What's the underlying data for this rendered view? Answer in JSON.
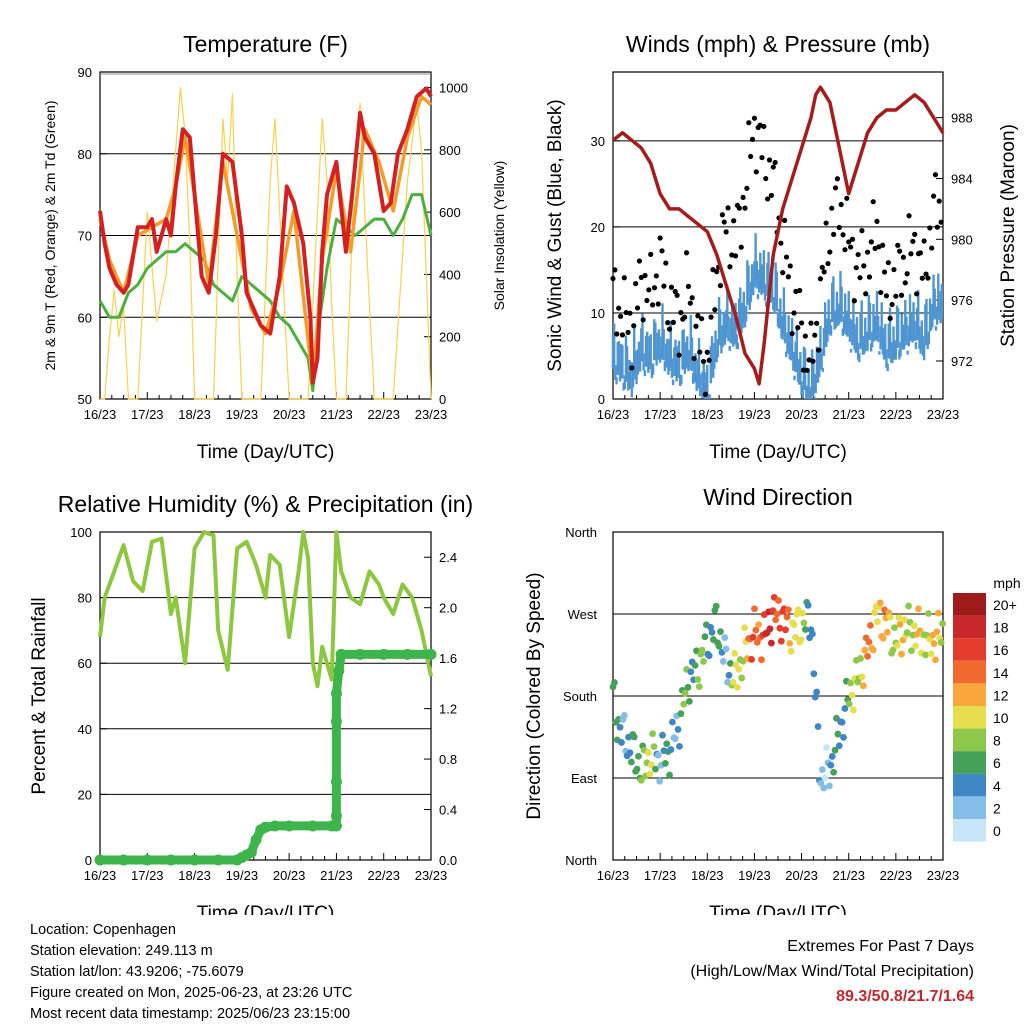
{
  "chart_data": [
    {
      "type": "line",
      "title": "Temperature (F)",
      "xlabel": "Time (Day/UTC)",
      "ylabel": "2m & 9m T (Red, Orange) & 2m Td (Green)",
      "ylabel_right": "Solar Insolation (Yellow)",
      "x_ticks": [
        "16/23",
        "17/23",
        "18/23",
        "19/23",
        "20/23",
        "21/23",
        "22/23",
        "23/23"
      ],
      "ylim": [
        50,
        90
      ],
      "yticks": [
        50,
        60,
        70,
        80,
        90
      ],
      "ylim_right": [
        0,
        1050
      ],
      "yticks_right": [
        0,
        200,
        400,
        600,
        800,
        1000
      ],
      "grid": true,
      "series": [
        {
          "axis": "left",
          "color": "#d42020",
          "x": [
            0,
            0.1,
            0.2,
            0.35,
            0.5,
            0.6,
            0.8,
            1.0,
            1.1,
            1.2,
            1.4,
            1.5,
            1.6,
            1.75,
            1.9,
            2.0,
            2.15,
            2.3,
            2.45,
            2.6,
            2.8,
            3.0,
            3.1,
            3.25,
            3.4,
            3.6,
            3.8,
            3.95,
            4.1,
            4.3,
            4.45,
            4.5,
            4.6,
            4.7,
            4.8,
            5.0,
            5.2,
            5.35,
            5.5,
            5.6,
            5.8,
            6.0,
            6.15,
            6.3,
            6.5,
            6.7,
            6.9,
            7.0
          ],
          "values": [
            73,
            69,
            66,
            64,
            63,
            64,
            71,
            71,
            72,
            68,
            72,
            70,
            76,
            83,
            82,
            75,
            65,
            63,
            70,
            80,
            79,
            70,
            63,
            61,
            59,
            58,
            65,
            76,
            74,
            69,
            60,
            52,
            55,
            68,
            75,
            79,
            68,
            76,
            85,
            82,
            80,
            73,
            74,
            80,
            83,
            87,
            88,
            87
          ]
        },
        {
          "axis": "left",
          "color": "#f39c2a",
          "x": [
            0,
            0.2,
            0.5,
            0.8,
            1.1,
            1.4,
            1.6,
            1.8,
            2.0,
            2.3,
            2.6,
            2.9,
            3.2,
            3.5,
            3.8,
            4.1,
            4.5,
            4.7,
            5.0,
            5.3,
            5.6,
            5.9,
            6.2,
            6.5,
            6.8,
            7.0
          ],
          "values": [
            72,
            67,
            63,
            70,
            71,
            72,
            76,
            82,
            75,
            64,
            79,
            70,
            61,
            58,
            64,
            73,
            52,
            67,
            78,
            68,
            83,
            79,
            73,
            82,
            87,
            86
          ]
        },
        {
          "axis": "left",
          "color": "#4caf3e",
          "x": [
            0,
            0.2,
            0.4,
            0.6,
            0.8,
            1.0,
            1.2,
            1.4,
            1.6,
            1.8,
            2.0,
            2.2,
            2.4,
            2.6,
            2.8,
            3.0,
            3.2,
            3.4,
            3.6,
            3.8,
            4.0,
            4.2,
            4.4,
            4.5,
            4.6,
            4.8,
            5.0,
            5.2,
            5.4,
            5.6,
            5.8,
            6.0,
            6.2,
            6.4,
            6.6,
            6.8,
            7.0
          ],
          "values": [
            62,
            60,
            60,
            63,
            64,
            66,
            67,
            68,
            68,
            69,
            68,
            67,
            64,
            63,
            62,
            65,
            64,
            63,
            62,
            60,
            59,
            57,
            55,
            51,
            58,
            66,
            72,
            71,
            70,
            71,
            72,
            72,
            70,
            72,
            75,
            75,
            70
          ]
        },
        {
          "axis": "right",
          "color": "#f7d24a",
          "x": [
            0,
            0.1,
            0.2,
            0.3,
            0.4,
            0.5,
            0.6,
            0.8,
            1.0,
            1.2,
            1.4,
            1.6,
            1.7,
            1.8,
            1.9,
            2.0,
            2.2,
            2.4,
            2.6,
            2.7,
            2.8,
            2.9,
            3.0,
            3.2,
            3.4,
            3.6,
            3.7,
            3.8,
            3.9,
            4.0,
            4.2,
            4.4,
            4.6,
            4.7,
            4.8,
            4.9,
            5.0,
            5.2,
            5.4,
            5.5,
            5.6,
            5.7,
            5.8,
            5.9,
            6.0,
            6.2,
            6.5,
            6.7,
            6.8,
            6.9,
            7.0
          ],
          "values": [
            0,
            0,
            200,
            350,
            200,
            300,
            0,
            0,
            600,
            250,
            400,
            800,
            1000,
            850,
            500,
            0,
            0,
            0,
            900,
            700,
            980,
            400,
            0,
            0,
            0,
            700,
            900,
            600,
            300,
            0,
            0,
            0,
            600,
            900,
            700,
            300,
            0,
            0,
            800,
            950,
            600,
            300,
            0,
            0,
            0,
            0,
            700,
            950,
            800,
            400,
            0
          ]
        }
      ]
    },
    {
      "type": "scatter",
      "title": "Winds (mph) & Pressure (mb)",
      "xlabel": "Time (Day/UTC)",
      "ylabel": "Sonic Wind & Gust (Blue, Black)",
      "ylabel_right": "Station Pressure (Maroon)",
      "x_ticks": [
        "16/23",
        "17/23",
        "18/23",
        "19/23",
        "20/23",
        "21/23",
        "22/23",
        "23/23"
      ],
      "ylim": [
        0,
        38
      ],
      "yticks": [
        0,
        10,
        20,
        30
      ],
      "ylim_right": [
        969.5,
        991
      ],
      "yticks_right": [
        972,
        976,
        980,
        984,
        988
      ],
      "grid": true,
      "series": [
        {
          "name_printed": false,
          "color": "#000000",
          "kind": "gust",
          "x": [
            0,
            0.2,
            0.4,
            0.6,
            0.8,
            1.0,
            1.2,
            1.4,
            1.6,
            1.8,
            2.0,
            2.2,
            2.4,
            2.6,
            2.8,
            3.0,
            3.2,
            3.4,
            3.6,
            3.8,
            4.0,
            4.2,
            4.4,
            4.6,
            4.8,
            5.0,
            5.2,
            5.4,
            5.6,
            5.8,
            6.0,
            6.2,
            6.4,
            6.6,
            6.8,
            7.0
          ],
          "values": [
            12,
            10,
            8,
            14,
            12,
            16,
            11,
            9,
            13,
            7,
            4,
            15,
            20,
            18,
            24,
            32,
            28,
            25,
            18,
            12,
            8,
            4,
            12,
            20,
            23,
            18,
            15,
            16,
            20,
            12,
            14,
            16,
            18,
            14,
            22,
            22
          ]
        },
        {
          "name_printed": false,
          "color": "#4f95d1",
          "kind": "wind",
          "x": [
            0,
            0.2,
            0.4,
            0.6,
            0.8,
            1.0,
            1.2,
            1.4,
            1.6,
            1.8,
            2.0,
            2.2,
            2.4,
            2.6,
            2.8,
            3.0,
            3.2,
            3.4,
            3.6,
            3.8,
            4.0,
            4.2,
            4.4,
            4.6,
            4.8,
            5.0,
            5.2,
            5.4,
            5.6,
            5.8,
            6.0,
            6.2,
            6.4,
            6.6,
            6.8,
            7.0
          ],
          "values": [
            6,
            5,
            4,
            7,
            6,
            8,
            6,
            5,
            7,
            4,
            2,
            8,
            10,
            9,
            12,
            16,
            15,
            14,
            10,
            7,
            4,
            2,
            6,
            11,
            12,
            10,
            8,
            9,
            10,
            7,
            8,
            9,
            10,
            8,
            12,
            12
          ]
        },
        {
          "name_printed": false,
          "color": "#a51c1c",
          "kind": "pressure",
          "axis": "right",
          "x": [
            0,
            0.2,
            0.4,
            0.6,
            0.8,
            1.0,
            1.2,
            1.4,
            1.6,
            1.8,
            2.0,
            2.2,
            2.4,
            2.6,
            2.8,
            3.0,
            3.1,
            3.2,
            3.3,
            3.4,
            3.6,
            3.8,
            4.0,
            4.2,
            4.3,
            4.4,
            4.6,
            4.7,
            4.8,
            5.0,
            5.2,
            5.4,
            5.6,
            5.8,
            6.0,
            6.2,
            6.4,
            6.6,
            6.8,
            7.0
          ],
          "values": [
            986.5,
            987,
            986.5,
            986,
            985,
            983,
            982,
            982,
            981.5,
            981,
            980.5,
            979,
            977,
            975,
            972.5,
            971.5,
            970.5,
            973,
            976,
            979,
            982,
            984,
            986,
            988,
            989.5,
            990,
            989,
            987.5,
            986,
            983,
            985,
            987,
            988,
            988.5,
            988.5,
            989,
            989.5,
            989,
            988,
            987
          ]
        }
      ]
    },
    {
      "type": "line",
      "title": "Relative Humidity (%) & Precipitation (in)",
      "xlabel": "Time (Day/UTC)",
      "ylabel": "Percent & Total Rainfall",
      "x_ticks": [
        "16/23",
        "17/23",
        "18/23",
        "19/23",
        "20/23",
        "21/23",
        "22/23",
        "23/23"
      ],
      "ylim": [
        0,
        100
      ],
      "yticks": [
        0,
        20,
        40,
        60,
        80,
        100
      ],
      "ylim_right": [
        0,
        2.6
      ],
      "yticks_right": [
        "0.0",
        "0.4",
        "0.8",
        "1.2",
        "1.6",
        "2.0",
        "2.4"
      ],
      "grid": true,
      "series": [
        {
          "color": "#8dc63f",
          "axis": "left",
          "x": [
            0,
            0.1,
            0.3,
            0.5,
            0.7,
            0.9,
            1.1,
            1.3,
            1.5,
            1.6,
            1.8,
            2.0,
            2.2,
            2.4,
            2.5,
            2.7,
            2.9,
            3.1,
            3.3,
            3.5,
            3.6,
            3.8,
            4.0,
            4.2,
            4.3,
            4.4,
            4.5,
            4.6,
            4.7,
            4.9,
            5.0,
            5.1,
            5.3,
            5.5,
            5.7,
            5.9,
            6.0,
            6.2,
            6.4,
            6.6,
            6.8,
            7.0
          ],
          "values": [
            68,
            80,
            88,
            96,
            85,
            82,
            97,
            98,
            75,
            80,
            60,
            95,
            100,
            99,
            70,
            58,
            95,
            97,
            90,
            80,
            93,
            90,
            68,
            88,
            100,
            92,
            60,
            53,
            65,
            55,
            100,
            88,
            80,
            78,
            88,
            84,
            80,
            75,
            84,
            80,
            70,
            56
          ]
        },
        {
          "color": "#3db54a",
          "axis": "right",
          "x": [
            0,
            0.5,
            1.0,
            1.5,
            2.0,
            2.5,
            2.9,
            3.0,
            3.1,
            3.2,
            3.3,
            3.4,
            3.5,
            3.7,
            4.0,
            4.5,
            4.9,
            5.0,
            5.0,
            5.0,
            5.0,
            5.0,
            5.05,
            5.1,
            5.5,
            6.0,
            6.5,
            7.0
          ],
          "values": [
            0,
            0,
            0,
            0,
            0,
            0,
            0,
            0.02,
            0.04,
            0.06,
            0.16,
            0.24,
            0.26,
            0.27,
            0.27,
            0.27,
            0.27,
            0.27,
            0.35,
            0.62,
            1.1,
            1.32,
            1.5,
            1.63,
            1.63,
            1.63,
            1.63,
            1.63
          ]
        }
      ]
    },
    {
      "type": "scatter",
      "title": "Wind Direction",
      "xlabel": "Time (Day/UTC)",
      "ylabel": "Direction (Colored By Speed)",
      "x_ticks": [
        "16/23",
        "17/23",
        "18/23",
        "19/23",
        "20/23",
        "21/23",
        "22/23",
        "23/23"
      ],
      "y_ticks": [
        "North",
        "East",
        "South",
        "West",
        "North"
      ],
      "ylim": [
        0,
        360
      ],
      "legend": {
        "title": "mph",
        "labels": [
          "20+",
          "18",
          "16",
          "14",
          "12",
          "10",
          "8",
          "6",
          "4",
          "2",
          "0"
        ],
        "colors": [
          "#9e1b1b",
          "#c8272b",
          "#e23c2d",
          "#f06a2f",
          "#f9a73d",
          "#e6de4c",
          "#8ec84a",
          "#45a058",
          "#3f86c4",
          "#84bde8",
          "#c6e6f7"
        ]
      },
      "points_by_day": [
        {
          "x": [
            0,
            0.1,
            0.2,
            0.3,
            0.4,
            0.5,
            0.6,
            0.8,
            1.0,
            1.2,
            1.4,
            1.6,
            1.8,
            2.0,
            2.2,
            2.4,
            2.6,
            2.8,
            3.0,
            3.2,
            3.4,
            3.6,
            3.8,
            4.0,
            4.2,
            4.4,
            4.6,
            4.8,
            5.0,
            5.2,
            5.4,
            5.6,
            5.8,
            6.0,
            6.2,
            6.4,
            6.6,
            6.8,
            7.0
          ],
          "dir": [
            180,
            150,
            140,
            130,
            120,
            110,
            100,
            115,
            110,
            120,
            150,
            200,
            210,
            240,
            260,
            215,
            200,
            230,
            250,
            245,
            270,
            265,
            250,
            260,
            265,
            90,
            100,
            140,
            180,
            200,
            230,
            270,
            260,
            240,
            255,
            250,
            245,
            240,
            250
          ],
          "speed": [
            5,
            4,
            3,
            5,
            4,
            5,
            9,
            8,
            4,
            4,
            5,
            6,
            7,
            6,
            5,
            3,
            9,
            11,
            14,
            16,
            17,
            15,
            12,
            8,
            5,
            2,
            3,
            5,
            6,
            10,
            13,
            12,
            11,
            10,
            9,
            9,
            10,
            11,
            10
          ]
        }
      ]
    }
  ],
  "footer": {
    "location": "Location: Copenhagen",
    "elevation": "Station elevation: 249.113 m",
    "latlon": "Station lat/lon: 43.9206; -75.6079",
    "created": "Figure created on Mon, 2025-06-23, at 23:26 UTC",
    "recent": "Most recent data timestamp: 2025/06/23 23:15:00",
    "extremes_title": "Extremes For Past 7 Days",
    "extremes_subtitle": "(High/Low/Max Wind/Total Precipitation)",
    "extremes_values": "89.3/50.8/21.7/1.64"
  }
}
